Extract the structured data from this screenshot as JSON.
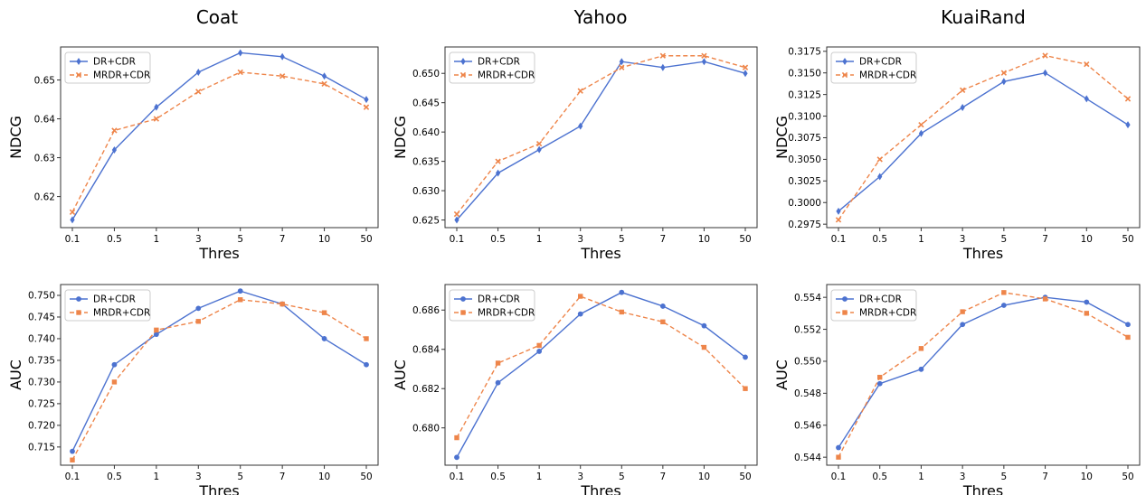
{
  "figure": {
    "column_titles": [
      "Coat",
      "Yahoo",
      "KuaiRand"
    ]
  },
  "colors": {
    "dr": "#4c72d0",
    "mrdr": "#ee854a",
    "axes": "#333333"
  },
  "chart_data": [
    {
      "type": "line",
      "panel": "coat-ndcg",
      "categories": [
        "0.1",
        "0.5",
        "1",
        "3",
        "5",
        "7",
        "10",
        "50"
      ],
      "xlabel": "Thres",
      "ylabel": "NDCG",
      "ylim": [
        0.612,
        0.6585
      ],
      "yticks": [
        0.62,
        0.63,
        0.64,
        0.65
      ],
      "ytick_labels": [
        "0.62",
        "0.63",
        "0.64",
        "0.65"
      ],
      "legend": "top-left",
      "series": [
        {
          "name": "DR+CDR",
          "marker": "diamond",
          "values": [
            0.614,
            0.632,
            0.643,
            0.652,
            0.657,
            0.656,
            0.651,
            0.645
          ]
        },
        {
          "name": "MRDR+CDR",
          "marker": "x",
          "values": [
            0.616,
            0.637,
            0.64,
            0.647,
            0.652,
            0.651,
            0.649,
            0.643
          ]
        }
      ]
    },
    {
      "type": "line",
      "panel": "yahoo-ndcg",
      "categories": [
        "0.1",
        "0.5",
        "1",
        "3",
        "5",
        "7",
        "10",
        "50"
      ],
      "xlabel": "Thres",
      "ylabel": "NDCG",
      "ylim": [
        0.6237,
        0.6545
      ],
      "yticks": [
        0.625,
        0.63,
        0.635,
        0.64,
        0.645,
        0.65
      ],
      "ytick_labels": [
        "0.625",
        "0.630",
        "0.635",
        "0.640",
        "0.645",
        "0.650"
      ],
      "legend": "top-left",
      "series": [
        {
          "name": "DR+CDR",
          "marker": "diamond",
          "values": [
            0.625,
            0.633,
            0.637,
            0.641,
            0.652,
            0.651,
            0.652,
            0.65
          ]
        },
        {
          "name": "MRDR+CDR",
          "marker": "x",
          "values": [
            0.626,
            0.635,
            0.638,
            0.647,
            0.651,
            0.653,
            0.653,
            0.651
          ]
        }
      ]
    },
    {
      "type": "line",
      "panel": "kuairand-ndcg",
      "categories": [
        "0.1",
        "0.5",
        "1",
        "3",
        "5",
        "7",
        "10",
        "50"
      ],
      "xlabel": "Thres",
      "ylabel": "NDCG",
      "ylim": [
        0.2971,
        0.318
      ],
      "yticks": [
        0.2975,
        0.3,
        0.3025,
        0.305,
        0.3075,
        0.31,
        0.3125,
        0.315,
        0.3175
      ],
      "ytick_labels": [
        "0.2975",
        "0.3000",
        "0.3025",
        "0.3050",
        "0.3075",
        "0.3100",
        "0.3125",
        "0.3150",
        "0.3175"
      ],
      "legend": "top-left",
      "series": [
        {
          "name": "DR+CDR",
          "marker": "diamond",
          "values": [
            0.299,
            0.303,
            0.308,
            0.311,
            0.314,
            0.315,
            0.312,
            0.309
          ]
        },
        {
          "name": "MRDR+CDR",
          "marker": "x",
          "values": [
            0.298,
            0.305,
            0.309,
            0.313,
            0.315,
            0.317,
            0.316,
            0.312
          ]
        }
      ]
    },
    {
      "type": "line",
      "panel": "coat-auc",
      "categories": [
        "0.1",
        "0.5",
        "1",
        "3",
        "5",
        "7",
        "10",
        "50"
      ],
      "xlabel": "Thres",
      "ylabel": "AUC",
      "ylim": [
        0.7108,
        0.7525
      ],
      "yticks": [
        0.715,
        0.72,
        0.725,
        0.73,
        0.735,
        0.74,
        0.745,
        0.75
      ],
      "ytick_labels": [
        "0.715",
        "0.720",
        "0.725",
        "0.730",
        "0.735",
        "0.740",
        "0.745",
        "0.750"
      ],
      "legend": "top-left",
      "series": [
        {
          "name": "DR+CDR",
          "marker": "circle",
          "values": [
            0.714,
            0.734,
            0.741,
            0.747,
            0.751,
            0.748,
            0.74,
            0.734
          ]
        },
        {
          "name": "MRDR+CDR",
          "marker": "square",
          "values": [
            0.712,
            0.73,
            0.742,
            0.744,
            0.749,
            0.748,
            0.746,
            0.74
          ]
        }
      ]
    },
    {
      "type": "line",
      "panel": "yahoo-auc",
      "categories": [
        "0.1",
        "0.5",
        "1",
        "3",
        "5",
        "7",
        "10",
        "50"
      ],
      "xlabel": "Thres",
      "ylabel": "AUC",
      "ylim": [
        0.6781,
        0.6873
      ],
      "yticks": [
        0.68,
        0.682,
        0.684,
        0.686
      ],
      "ytick_labels": [
        "0.680",
        "0.682",
        "0.684",
        "0.686"
      ],
      "legend": "top-left",
      "series": [
        {
          "name": "DR+CDR",
          "marker": "circle",
          "values": [
            0.6785,
            0.6823,
            0.6839,
            0.6858,
            0.6869,
            0.6862,
            0.6852,
            0.6836
          ]
        },
        {
          "name": "MRDR+CDR",
          "marker": "square",
          "values": [
            0.6795,
            0.6833,
            0.6842,
            0.6867,
            0.6859,
            0.6854,
            0.6841,
            0.682
          ]
        }
      ]
    },
    {
      "type": "line",
      "panel": "kuairand-auc",
      "categories": [
        "0.1",
        "0.5",
        "1",
        "3",
        "5",
        "7",
        "10",
        "50"
      ],
      "xlabel": "Thres",
      "ylabel": "AUC",
      "ylim": [
        0.5435,
        0.5548
      ],
      "yticks": [
        0.544,
        0.546,
        0.548,
        0.55,
        0.552,
        0.554
      ],
      "ytick_labels": [
        "0.544",
        "0.546",
        "0.548",
        "0.550",
        "0.552",
        "0.554"
      ],
      "legend": "top-left",
      "series": [
        {
          "name": "DR+CDR",
          "marker": "circle",
          "values": [
            0.5446,
            0.5486,
            0.5495,
            0.5523,
            0.5535,
            0.554,
            0.5537,
            0.5523
          ]
        },
        {
          "name": "MRDR+CDR",
          "marker": "square",
          "values": [
            0.544,
            0.549,
            0.5508,
            0.5531,
            0.5543,
            0.5539,
            0.553,
            0.5515
          ]
        }
      ]
    }
  ]
}
